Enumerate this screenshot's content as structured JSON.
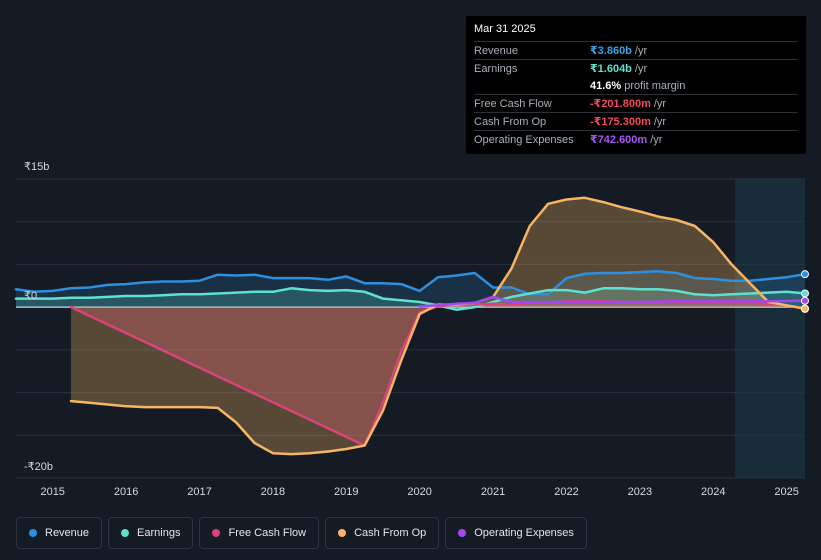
{
  "tooltip": {
    "date": "Mar 31 2025",
    "rows": [
      {
        "label": "Revenue",
        "value": "₹3.860b",
        "unit": "/yr",
        "color": "#3ca0ea"
      },
      {
        "label": "Earnings",
        "value": "₹1.604b",
        "unit": "/yr",
        "color": "#5fe0d0"
      },
      {
        "label": "",
        "value": "41.6%",
        "unit": "profit margin",
        "color": "#ffffff"
      },
      {
        "label": "Free Cash Flow",
        "value": "-₹201.800m",
        "unit": "/yr",
        "color": "#ef4b5b"
      },
      {
        "label": "Cash From Op",
        "value": "-₹175.300m",
        "unit": "/yr",
        "color": "#ef4b5b"
      },
      {
        "label": "Operating Expenses",
        "value": "₹742.600m",
        "unit": "/yr",
        "color": "#a855f7"
      }
    ]
  },
  "legend": [
    {
      "label": "Revenue",
      "color": "#2d8fe0"
    },
    {
      "label": "Earnings",
      "color": "#5fe0d0"
    },
    {
      "label": "Free Cash Flow",
      "color": "#d9447a"
    },
    {
      "label": "Cash From Op",
      "color": "#f5b565"
    },
    {
      "label": "Operating Expenses",
      "color": "#a348ee"
    }
  ],
  "chart_data": {
    "type": "line",
    "title": "",
    "xlabel": "",
    "ylabel": "",
    "y_unit": "₹ billions",
    "ylim": [
      -20,
      15
    ],
    "xlim": [
      2014.5,
      2025.25
    ],
    "y_tick_labels": [
      {
        "value": 15,
        "label": "₹15b"
      },
      {
        "value": 0,
        "label": "₹0"
      },
      {
        "value": -20,
        "label": "-₹20b"
      }
    ],
    "x_ticks": [
      2015,
      2016,
      2017,
      2018,
      2019,
      2020,
      2021,
      2022,
      2023,
      2024,
      2025
    ],
    "x_tick_labels": [
      "2015",
      "2016",
      "2017",
      "2018",
      "2019",
      "2020",
      "2021",
      "2022",
      "2023",
      "2024",
      "2025"
    ],
    "forecast_region_start": 2024.25,
    "series": [
      {
        "name": "Revenue",
        "color": "#2d8fe0",
        "area": true,
        "x": [
          2014.5,
          2014.75,
          2015.0,
          2015.25,
          2015.5,
          2015.75,
          2016.0,
          2016.25,
          2016.5,
          2016.75,
          2017.0,
          2017.25,
          2017.5,
          2017.75,
          2018.0,
          2018.25,
          2018.5,
          2018.75,
          2019.0,
          2019.25,
          2019.5,
          2019.75,
          2020.0,
          2020.25,
          2020.5,
          2020.75,
          2021.0,
          2021.25,
          2021.5,
          2021.75,
          2022.0,
          2022.25,
          2022.5,
          2022.75,
          2023.0,
          2023.25,
          2023.5,
          2023.75,
          2024.0,
          2024.25,
          2024.5,
          2024.75,
          2025.0,
          2025.25
        ],
        "values": [
          2.1,
          1.8,
          1.9,
          2.2,
          2.3,
          2.6,
          2.7,
          2.9,
          3.0,
          3.0,
          3.1,
          3.8,
          3.7,
          3.8,
          3.4,
          3.4,
          3.4,
          3.2,
          3.6,
          2.8,
          2.8,
          2.7,
          1.9,
          3.5,
          3.7,
          4.0,
          2.3,
          2.3,
          1.5,
          1.5,
          3.4,
          3.9,
          4.0,
          4.0,
          4.1,
          4.2,
          4.0,
          3.4,
          3.3,
          3.1,
          3.1,
          3.3,
          3.5,
          3.86
        ]
      },
      {
        "name": "Earnings",
        "color": "#5fe0d0",
        "area": true,
        "x": [
          2014.5,
          2014.75,
          2015.0,
          2015.25,
          2015.5,
          2015.75,
          2016.0,
          2016.25,
          2016.5,
          2016.75,
          2017.0,
          2017.25,
          2017.5,
          2017.75,
          2018.0,
          2018.25,
          2018.5,
          2018.75,
          2019.0,
          2019.25,
          2019.5,
          2019.75,
          2020.0,
          2020.25,
          2020.5,
          2020.75,
          2021.0,
          2021.25,
          2021.5,
          2021.75,
          2022.0,
          2022.25,
          2022.5,
          2022.75,
          2023.0,
          2023.25,
          2023.5,
          2023.75,
          2024.0,
          2024.25,
          2024.5,
          2024.75,
          2025.0,
          2025.25
        ],
        "values": [
          1.0,
          1.0,
          1.0,
          1.1,
          1.1,
          1.2,
          1.3,
          1.3,
          1.4,
          1.5,
          1.5,
          1.6,
          1.7,
          1.8,
          1.8,
          2.2,
          2.0,
          1.9,
          2.0,
          1.8,
          1.0,
          0.8,
          0.6,
          0.2,
          -0.3,
          0.0,
          0.6,
          1.2,
          1.6,
          2.0,
          2.0,
          1.7,
          2.2,
          2.2,
          2.1,
          2.1,
          1.9,
          1.5,
          1.4,
          1.5,
          1.6,
          1.7,
          1.8,
          1.604
        ]
      },
      {
        "name": "Free Cash Flow",
        "color": "#d9447a",
        "area": true,
        "x": [
          2015.25,
          2019.25,
          2019.5,
          2019.75,
          2020.0,
          2020.25,
          2020.5,
          2020.75,
          2021.0,
          2021.25,
          2021.5,
          2021.75,
          2022.0,
          2022.25,
          2022.5,
          2022.75,
          2023.0,
          2023.25,
          2023.5,
          2023.75,
          2024.0,
          2024.25,
          2024.5,
          2024.75,
          2025.0,
          2025.25
        ],
        "values": [
          0.0,
          -16.2,
          -11.2,
          -5.2,
          -0.6,
          0.1,
          0.3,
          0.3,
          0.4,
          0.3,
          0.5,
          0.5,
          0.7,
          0.7,
          0.7,
          0.6,
          0.6,
          0.6,
          0.6,
          0.6,
          0.6,
          0.5,
          0.5,
          0.4,
          0.2,
          -0.2018
        ]
      },
      {
        "name": "Cash From Op",
        "color": "#f5b565",
        "area": true,
        "x": [
          2015.25,
          2015.5,
          2015.75,
          2016.0,
          2016.25,
          2016.5,
          2016.75,
          2017.0,
          2017.25,
          2017.5,
          2017.75,
          2018.0,
          2018.25,
          2018.5,
          2018.75,
          2019.0,
          2019.25,
          2019.5,
          2019.75,
          2020.0,
          2020.25,
          2020.5,
          2020.75,
          2021.0,
          2021.25,
          2021.5,
          2021.75,
          2022.0,
          2022.25,
          2022.5,
          2022.75,
          2023.0,
          2023.25,
          2023.5,
          2023.75,
          2024.0,
          2024.25,
          2024.5,
          2024.75,
          2025.0,
          2025.25
        ],
        "values": [
          -11.0,
          -11.2,
          -11.4,
          -11.6,
          -11.7,
          -11.7,
          -11.7,
          -11.7,
          -11.8,
          -13.5,
          -15.9,
          -17.1,
          -17.2,
          -17.1,
          -16.9,
          -16.6,
          -16.2,
          -12.1,
          -6.2,
          -0.8,
          0.3,
          0.3,
          0.5,
          1.2,
          4.5,
          9.5,
          12.1,
          12.6,
          12.8,
          12.3,
          11.7,
          11.2,
          10.6,
          10.2,
          9.5,
          7.6,
          5.0,
          2.8,
          0.6,
          0.2,
          -0.1753
        ]
      },
      {
        "name": "Operating Expenses",
        "color": "#a348ee",
        "area": false,
        "x": [
          2020.0,
          2020.25,
          2020.5,
          2020.75,
          2021.0,
          2021.25,
          2021.5,
          2021.75,
          2022.0,
          2022.25,
          2022.5,
          2022.75,
          2023.0,
          2023.25,
          2023.5,
          2023.75,
          2024.0,
          2024.25,
          2024.5,
          2024.75,
          2025.0,
          2025.25
        ],
        "values": [
          0.1,
          0.2,
          0.4,
          0.5,
          1.2,
          0.6,
          0.6,
          0.6,
          0.6,
          0.6,
          0.6,
          0.6,
          0.6,
          0.65,
          0.7,
          0.7,
          0.7,
          0.7,
          0.7,
          0.7,
          0.72,
          0.7426
        ]
      }
    ]
  }
}
